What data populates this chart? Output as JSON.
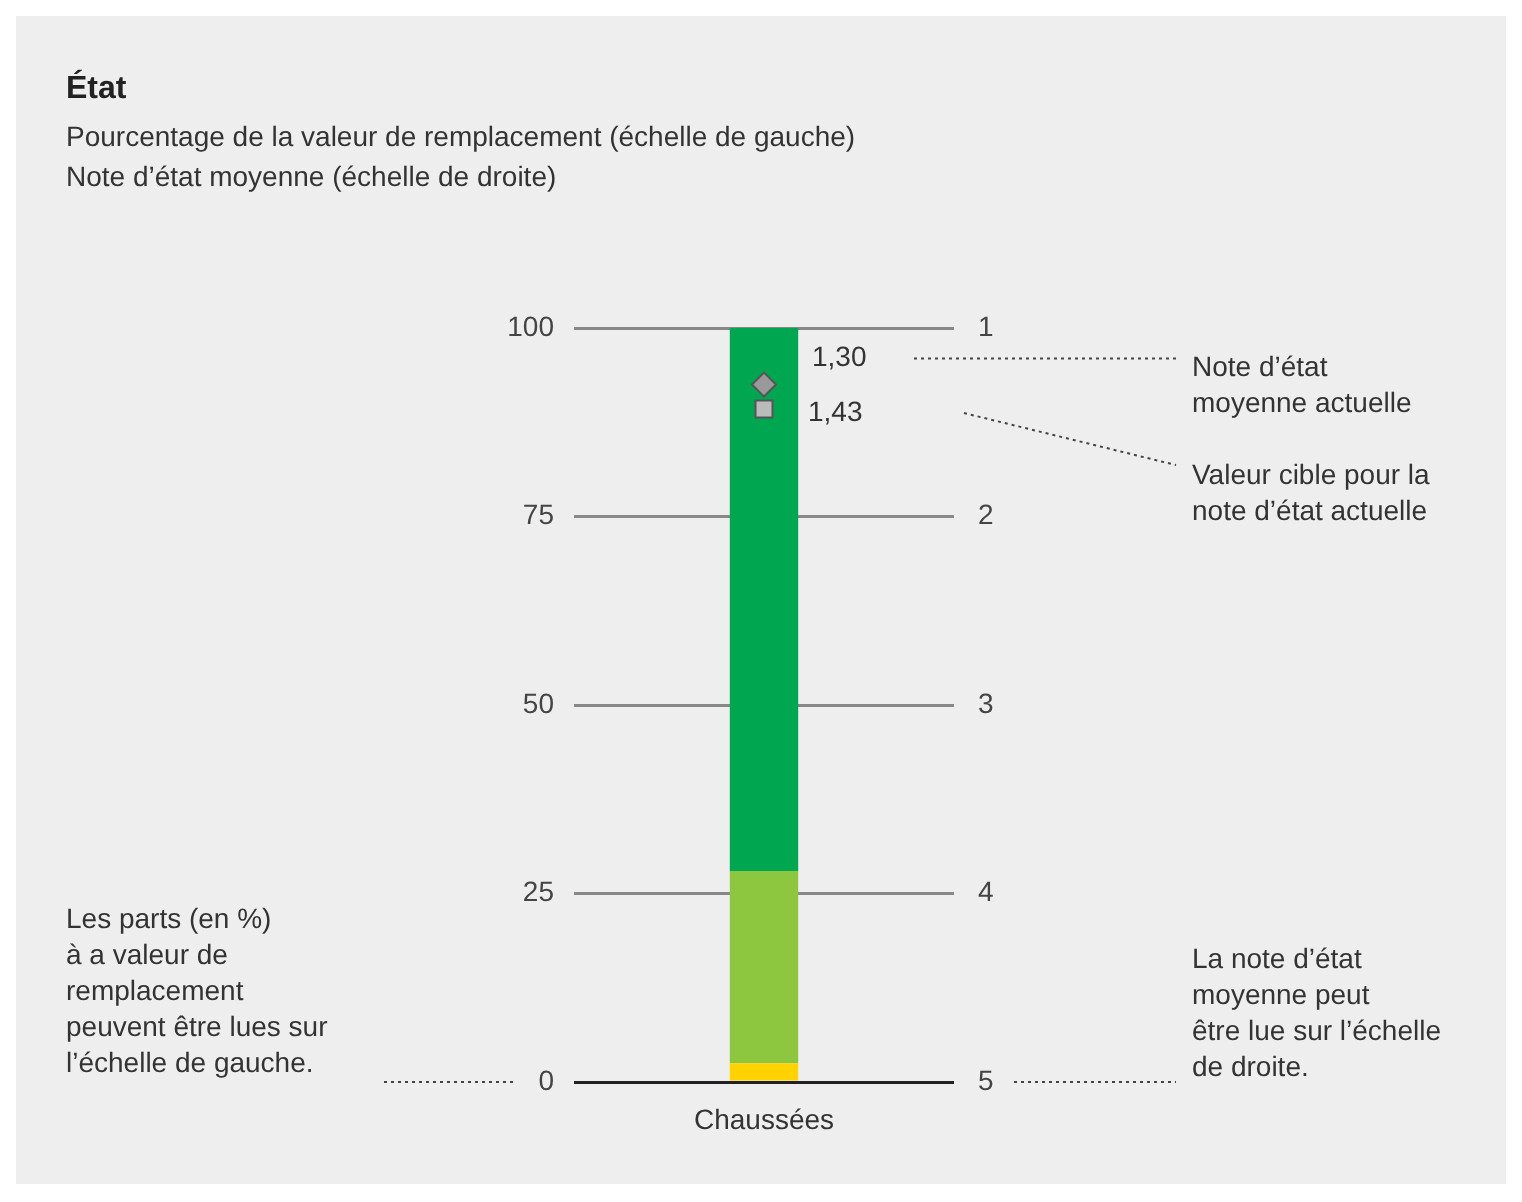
{
  "chart_data": {
    "type": "bar",
    "title": "État",
    "subtitle": "Pourcentage de la valeur de remplacement (échelle de gauche)\nNote d’état moyenne (échelle de droite)",
    "categories": [
      "Chaussées"
    ],
    "stacked": true,
    "series": [
      {
        "color": "#ffd200",
        "values": [
          2.5
        ]
      },
      {
        "color": "#8dc63f",
        "values": [
          25.5
        ]
      },
      {
        "color": "#00a650",
        "values": [
          72
        ]
      },
      {
        "type": "scatter",
        "axis": "y2",
        "marker": "diamond",
        "color": "#999999",
        "x": [
          "Chaussées"
        ],
        "values": [
          1.3
        ],
        "value_labels": [
          "1,30"
        ]
      },
      {
        "type": "scatter",
        "axis": "y2",
        "marker": "square",
        "color": "#bbbbbb",
        "x": [
          "Chaussées"
        ],
        "values": [
          1.43
        ],
        "value_labels": [
          "1,43"
        ]
      }
    ],
    "ylim": [
      0,
      100
    ],
    "yticks": [
      0,
      25,
      50,
      75,
      100
    ],
    "y2lim": [
      5,
      1
    ],
    "y2ticks": [
      5,
      4,
      3,
      2,
      1
    ],
    "grid": "y",
    "legend": false,
    "annotations": [
      "Note d’état\nmoyenne actuelle",
      "Valeur cible pour la\nnote d’état actuelle",
      "Les parts (en %)\nà a valeur de\nremplacement\npeuvent être lues sur\nl’échelle de gauche.",
      "La note d’état\nmoyenne peut\nêtre lue sur l’échelle\nde droite."
    ]
  }
}
